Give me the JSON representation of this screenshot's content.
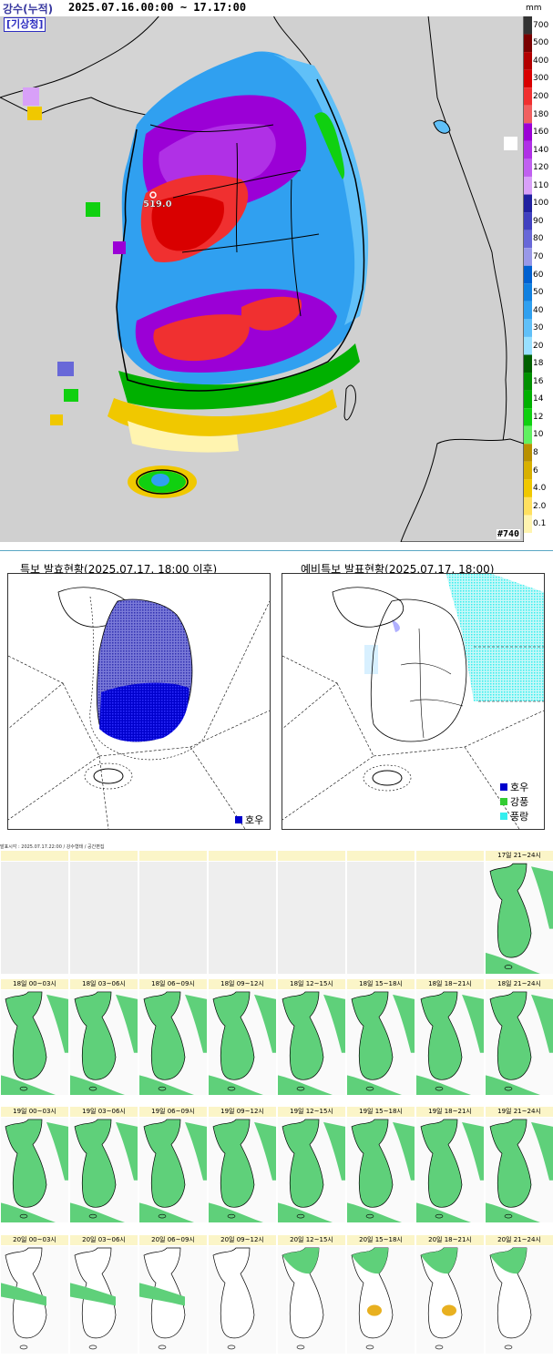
{
  "precip_map": {
    "title": "강수(누적)",
    "period": "2025.07.16.00:00 ~ 17.17:00",
    "agency": "[기상청]",
    "max_label": "519.0",
    "station_id": "#740",
    "legend": {
      "unit": "mm",
      "levels": [
        {
          "label": "700",
          "color": "#333333"
        },
        {
          "label": "500",
          "color": "#7a0000"
        },
        {
          "label": "400",
          "color": "#b30000"
        },
        {
          "label": "300",
          "color": "#d90000"
        },
        {
          "label": "200",
          "color": "#f03030"
        },
        {
          "label": "180",
          "color": "#f06060"
        },
        {
          "label": "160",
          "color": "#9b00d6"
        },
        {
          "label": "140",
          "color": "#b030e6"
        },
        {
          "label": "120",
          "color": "#c060f0"
        },
        {
          "label": "110",
          "color": "#d8a0f8"
        },
        {
          "label": "100",
          "color": "#2020a0"
        },
        {
          "label": "90",
          "color": "#4040c0"
        },
        {
          "label": "80",
          "color": "#6868d8"
        },
        {
          "label": "70",
          "color": "#9898e8"
        },
        {
          "label": "60",
          "color": "#0060d0"
        },
        {
          "label": "50",
          "color": "#1080e0"
        },
        {
          "label": "40",
          "color": "#30a0f0"
        },
        {
          "label": "30",
          "color": "#60c0f8"
        },
        {
          "label": "20",
          "color": "#98e0ff"
        },
        {
          "label": "18",
          "color": "#006000"
        },
        {
          "label": "16",
          "color": "#009000"
        },
        {
          "label": "14",
          "color": "#00b000"
        },
        {
          "label": "12",
          "color": "#10d010"
        },
        {
          "label": "10",
          "color": "#60f060"
        },
        {
          "label": "8",
          "color": "#b89000"
        },
        {
          "label": "6",
          "color": "#d8b000"
        },
        {
          "label": "4.0",
          "color": "#f0c800"
        },
        {
          "label": "2.0",
          "color": "#ffe060"
        },
        {
          "label": "0.1",
          "color": "#fff4b0"
        }
      ]
    }
  },
  "warning_panels": {
    "left": {
      "title": "특보 발효현황(2025.07.17. 18:00 이후)",
      "legend": [
        {
          "label": "호우",
          "color": "#0000cc"
        }
      ]
    },
    "right": {
      "title": "예비특보 발표현황(2025.07.17. 18:00)",
      "legend": [
        {
          "label": "호우",
          "color": "#0000cc"
        },
        {
          "label": "강풍",
          "color": "#33cc33"
        },
        {
          "label": "풍랑",
          "color": "#33eeee"
        }
      ]
    }
  },
  "forecast_grid": {
    "note": "발표시각 : 2025.07.17.22:00 / 강수형태 / 공간편집",
    "rows": [
      [
        "",
        "",
        "",
        "",
        "",
        "",
        "",
        "17일 21~24시"
      ],
      [
        "18일 00~03시",
        "18일 03~06시",
        "18일 06~09시",
        "18일 09~12시",
        "18일 12~15시",
        "18일 15~18시",
        "18일 18~21시",
        "18일 21~24시"
      ],
      [
        "19일 00~03시",
        "19일 03~06시",
        "19일 06~09시",
        "19일 09~12시",
        "19일 12~15시",
        "19일 15~18시",
        "19일 18~21시",
        "19일 21~24시"
      ],
      [
        "20일 00~03시",
        "20일 03~06시",
        "20일 06~09시",
        "20일 09~12시",
        "20일 12~15시",
        "20일 15~18시",
        "20일 18~21시",
        "20일 21~24시"
      ]
    ],
    "colors": {
      "rain": "#5fd07a",
      "snow_mix": "#e8b020",
      "no_data": "#eeeeee"
    }
  }
}
